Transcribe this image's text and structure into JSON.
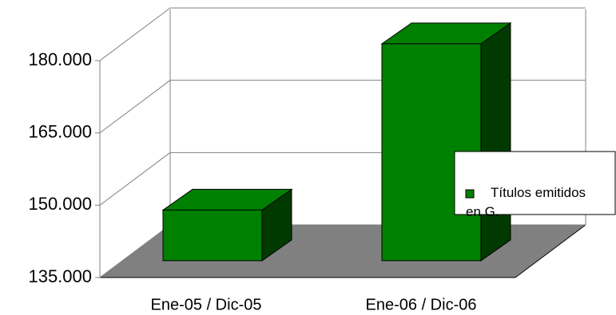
{
  "chart_data": {
    "type": "bar3d",
    "categories": [
      "Ene-05 / Dic-05",
      "Ene-06 / Dic-06"
    ],
    "series": [
      {
        "name": "Títulos emitidos en G.",
        "color": "#008000",
        "values": [
          145500,
          180000
        ]
      }
    ],
    "ylim": [
      135000,
      180000
    ],
    "yticks": [
      {
        "value": 135000,
        "label": "135.000"
      },
      {
        "value": 150000,
        "label": "150.000"
      },
      {
        "value": 165000,
        "label": "165.000"
      },
      {
        "value": 180000,
        "label": "180.000"
      }
    ],
    "grid": true,
    "legend": "right"
  }
}
